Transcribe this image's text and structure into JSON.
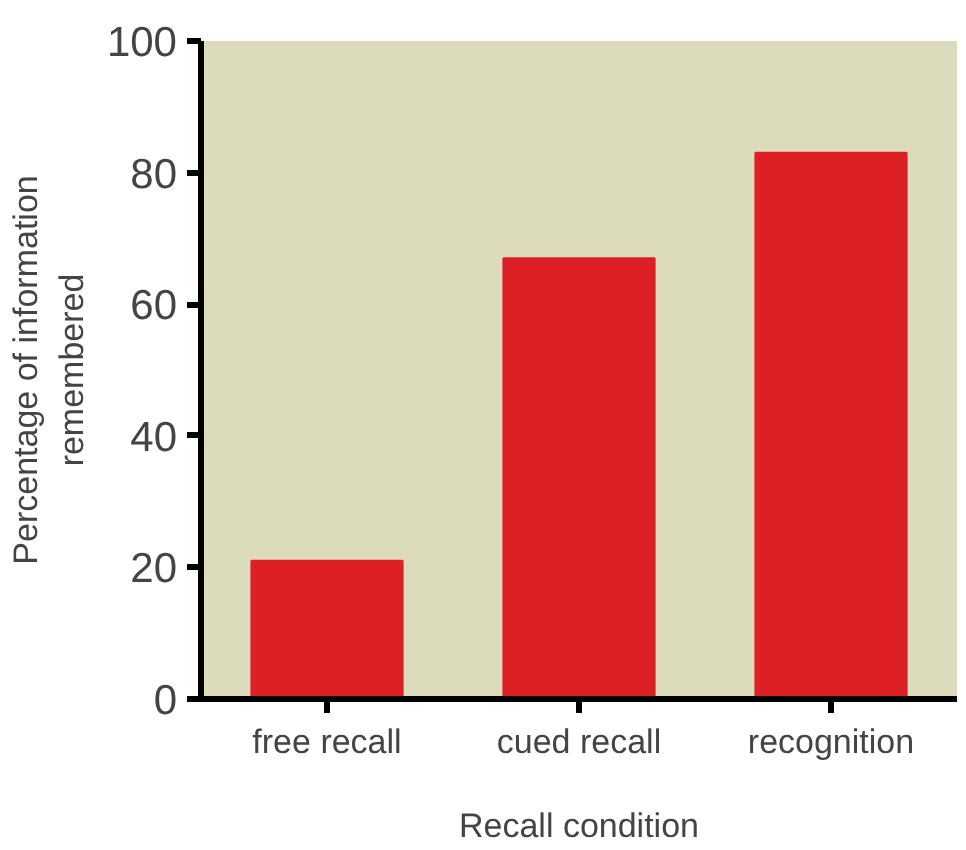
{
  "chart_data": {
    "type": "bar",
    "xlabel": "Recall condition",
    "ylabel": "Percentage of information\nremembered",
    "categories": [
      "free recall",
      "cued recall",
      "recognition"
    ],
    "values": [
      21,
      67,
      83
    ],
    "color": "#dd1f26",
    "ylim": [
      0,
      100
    ],
    "yticks": [
      0,
      20,
      40,
      60,
      80,
      100
    ],
    "grid": false
  }
}
